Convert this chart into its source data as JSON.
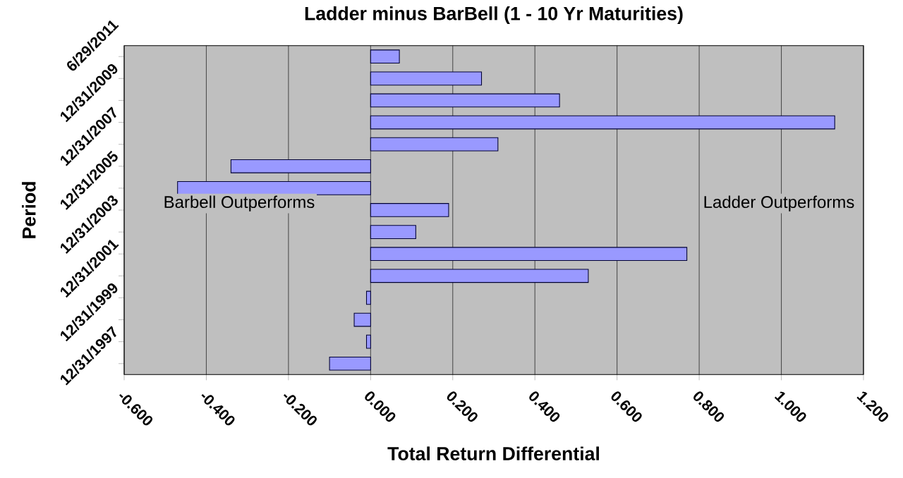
{
  "chart_data": {
    "type": "bar",
    "orientation": "horizontal",
    "title": "Ladder minus BarBell (1 - 10 Yr Maturities)",
    "xlabel": "Total Return Differential",
    "ylabel": "Period",
    "categories": [
      "6/29/2011",
      null,
      "12/31/2009",
      null,
      "12/31/2007",
      null,
      "12/31/2005",
      null,
      "12/31/2003",
      null,
      "12/31/2001",
      null,
      "12/31/1999",
      null,
      "12/31/1997"
    ],
    "values": [
      0.07,
      0.27,
      0.46,
      1.13,
      0.31,
      -0.34,
      -0.47,
      0.19,
      0.11,
      0.77,
      0.53,
      -0.01,
      -0.04,
      -0.01,
      -0.1
    ],
    "color": "#9999ff",
    "xlim": [
      -0.6,
      1.2
    ],
    "xticks": [
      {
        "value": -0.6,
        "label": "-0.600"
      },
      {
        "value": -0.4,
        "label": "-0.400"
      },
      {
        "value": -0.2,
        "label": "-0.200"
      },
      {
        "value": 0,
        "label": "0.000"
      },
      {
        "value": 0.2,
        "label": "0.200"
      },
      {
        "value": 0.4,
        "label": "0.400"
      },
      {
        "value": 0.6,
        "label": "0.600"
      },
      {
        "value": 0.8,
        "label": "0.800"
      },
      {
        "value": 1.0,
        "label": "1.000"
      },
      {
        "value": 1.2,
        "label": "1.200"
      }
    ],
    "grid": "x",
    "annotations": [
      "Barbell Outperforms",
      "Ladder Outperforms"
    ]
  }
}
